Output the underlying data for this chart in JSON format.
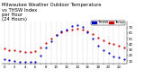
{
  "title": "Milwaukee Weather Outdoor Temperature\nvs THSW Index\nper Hour\n(24 Hours)",
  "temp_color": "#cc0000",
  "thsw_color": "#0000cc",
  "background_color": "#ffffff",
  "hours": [
    0,
    1,
    2,
    3,
    4,
    5,
    6,
    7,
    8,
    9,
    10,
    11,
    12,
    13,
    14,
    15,
    16,
    17,
    18,
    19,
    20,
    21,
    22,
    23
  ],
  "temp_values": [
    32,
    30,
    29,
    28,
    27,
    27,
    28,
    35,
    42,
    50,
    57,
    62,
    65,
    67,
    68,
    66,
    63,
    58,
    52,
    47,
    43,
    40,
    37,
    35
  ],
  "thsw_values": [
    14,
    12,
    10,
    9,
    8,
    8,
    9,
    20,
    34,
    46,
    56,
    63,
    67,
    72,
    74,
    71,
    62,
    50,
    38,
    30,
    24,
    18,
    16,
    14
  ],
  "ylim": [
    5,
    80
  ],
  "ytick_values": [
    10,
    20,
    30,
    40,
    50,
    60,
    70
  ],
  "legend_temp_label": "Temp",
  "legend_thsw_label": "THSW",
  "title_fontsize": 3.8,
  "tick_fontsize": 2.8,
  "legend_fontsize": 3.0,
  "marker_size": 1.2,
  "grid_color": "#bbbbbb",
  "dot_linewidth": 0
}
